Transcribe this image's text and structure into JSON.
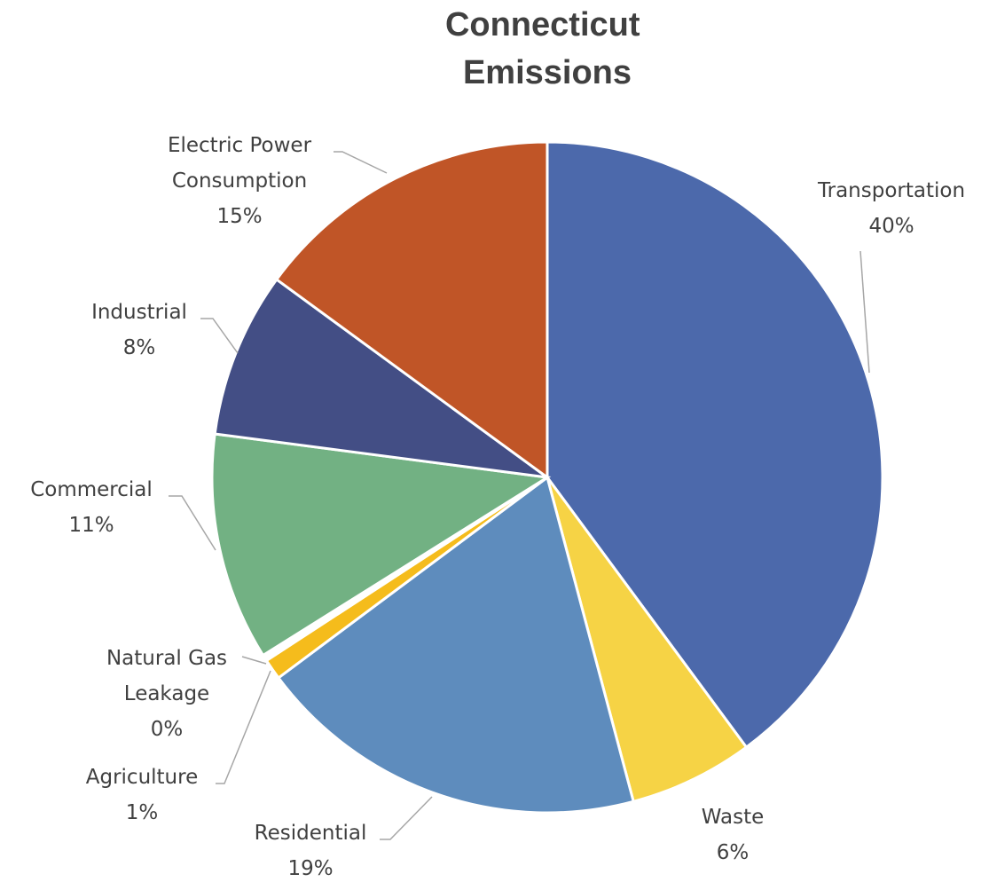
{
  "chart_data": {
    "type": "pie",
    "title": "Connecticut Emissions",
    "title_lines": [
      "Connecticut",
      "Emissions"
    ],
    "slices": [
      {
        "name": "Transportation",
        "name_lines": [
          "Transportation"
        ],
        "value": 40,
        "label_pct": "40%",
        "color": "#4c69ab"
      },
      {
        "name": "Waste",
        "name_lines": [
          "Waste"
        ],
        "value": 6,
        "label_pct": "6%",
        "color": "#f6d345"
      },
      {
        "name": "Residential",
        "name_lines": [
          "Residential"
        ],
        "value": 19,
        "label_pct": "19%",
        "color": "#5e8cbd"
      },
      {
        "name": "Agriculture",
        "name_lines": [
          "Agriculture"
        ],
        "value": 1,
        "label_pct": "1%",
        "color": "#f5bc1c"
      },
      {
        "name": "Natural Gas Leakage",
        "name_lines": [
          "Natural Gas",
          "Leakage"
        ],
        "value": 0.3,
        "label_pct": "0%",
        "color": "#ffffff"
      },
      {
        "name": "Commercial",
        "name_lines": [
          "Commercial"
        ],
        "value": 11,
        "label_pct": "11%",
        "color": "#72b183"
      },
      {
        "name": "Industrial",
        "name_lines": [
          "Industrial"
        ],
        "value": 8,
        "label_pct": "8%",
        "color": "#434e85"
      },
      {
        "name": "Electric Power Consumption",
        "name_lines": [
          "Electric Power",
          "Consumption"
        ],
        "value": 15,
        "label_pct": "15%",
        "color": "#c05527"
      }
    ],
    "start_angle_deg": 0,
    "direction": "clockwise",
    "legend": "none",
    "labels": "outside with leader lines"
  }
}
